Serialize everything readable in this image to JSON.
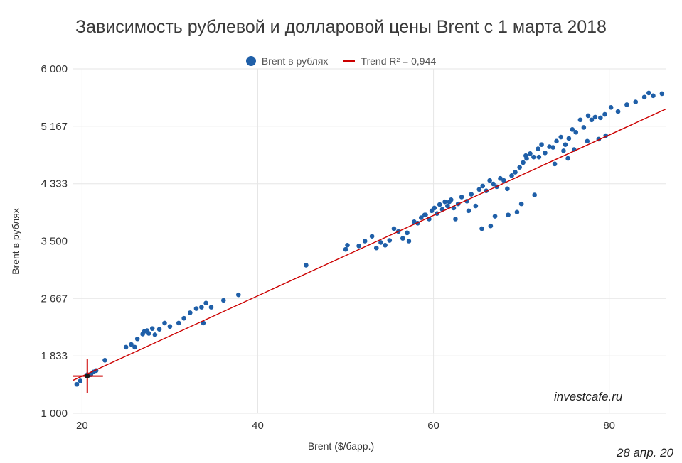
{
  "chart_data": {
    "type": "scatter",
    "title": "Зависимость рублевой и долларовой цены Brent с 1 марта 2018",
    "xlabel": "Brent ($/барр.)",
    "ylabel": "Brent в рублях",
    "xlim": [
      19,
      86.5
    ],
    "ylim": [
      1000,
      6000
    ],
    "x_ticks": [
      "20",
      "40",
      "60",
      "80"
    ],
    "x_tick_values": [
      20,
      40,
      60,
      80
    ],
    "y_ticks": [
      "6 000",
      "5 167",
      "4 333",
      "3 500",
      "2 667",
      "1 833",
      "1 000"
    ],
    "y_tick_values": [
      6000,
      5167,
      4333,
      3500,
      2667,
      1833,
      1000
    ],
    "grid": true,
    "legend": {
      "placement": "top",
      "entries": [
        "Brent в рублях",
        "Trend R² = 0,944"
      ]
    },
    "series": [
      {
        "name": "Brent в рублях",
        "color": "#1f5fa8",
        "points": [
          [
            19.4,
            1420
          ],
          [
            19.8,
            1470
          ],
          [
            20.6,
            1560
          ],
          [
            21.0,
            1560
          ],
          [
            21.3,
            1600
          ],
          [
            21.6,
            1620
          ],
          [
            22.6,
            1770
          ],
          [
            25.0,
            1960
          ],
          [
            25.6,
            2000
          ],
          [
            26.0,
            1960
          ],
          [
            26.3,
            2080
          ],
          [
            26.9,
            2150
          ],
          [
            27.1,
            2190
          ],
          [
            27.4,
            2200
          ],
          [
            27.6,
            2160
          ],
          [
            28.0,
            2230
          ],
          [
            28.3,
            2140
          ],
          [
            28.8,
            2220
          ],
          [
            29.4,
            2310
          ],
          [
            30.0,
            2260
          ],
          [
            31.0,
            2310
          ],
          [
            31.6,
            2380
          ],
          [
            32.3,
            2460
          ],
          [
            33.0,
            2520
          ],
          [
            33.6,
            2540
          ],
          [
            33.8,
            2310
          ],
          [
            34.1,
            2600
          ],
          [
            34.7,
            2540
          ],
          [
            36.1,
            2640
          ],
          [
            37.8,
            2720
          ],
          [
            45.5,
            3150
          ],
          [
            50.0,
            3380
          ],
          [
            50.2,
            3440
          ],
          [
            51.5,
            3430
          ],
          [
            52.2,
            3500
          ],
          [
            53.0,
            3570
          ],
          [
            53.5,
            3400
          ],
          [
            54.0,
            3480
          ],
          [
            54.5,
            3440
          ],
          [
            55.0,
            3510
          ],
          [
            55.5,
            3680
          ],
          [
            56.0,
            3640
          ],
          [
            56.5,
            3540
          ],
          [
            57.0,
            3620
          ],
          [
            57.2,
            3500
          ],
          [
            57.8,
            3780
          ],
          [
            58.2,
            3760
          ],
          [
            58.6,
            3840
          ],
          [
            59.1,
            3880
          ],
          [
            59.5,
            3820
          ],
          [
            59.8,
            3940
          ],
          [
            60.1,
            3980
          ],
          [
            60.4,
            3900
          ],
          [
            60.7,
            4030
          ],
          [
            61.0,
            3960
          ],
          [
            61.3,
            4070
          ],
          [
            61.6,
            4010
          ],
          [
            62.0,
            4100
          ],
          [
            62.3,
            3980
          ],
          [
            62.8,
            4040
          ],
          [
            63.2,
            4140
          ],
          [
            63.8,
            4080
          ],
          [
            64.3,
            4180
          ],
          [
            64.8,
            4010
          ],
          [
            65.2,
            4250
          ],
          [
            65.6,
            4300
          ],
          [
            66.0,
            4230
          ],
          [
            66.4,
            4380
          ],
          [
            66.8,
            4330
          ],
          [
            67.2,
            4290
          ],
          [
            67.6,
            4410
          ],
          [
            68.0,
            4380
          ],
          [
            68.4,
            4260
          ],
          [
            68.9,
            4450
          ],
          [
            69.3,
            4500
          ],
          [
            69.8,
            4570
          ],
          [
            70.2,
            4640
          ],
          [
            70.6,
            4700
          ],
          [
            71.0,
            4770
          ],
          [
            71.4,
            4720
          ],
          [
            71.9,
            4840
          ],
          [
            72.3,
            4900
          ],
          [
            72.7,
            4780
          ],
          [
            73.2,
            4870
          ],
          [
            73.6,
            4860
          ],
          [
            74.0,
            4950
          ],
          [
            74.5,
            5010
          ],
          [
            75.0,
            4900
          ],
          [
            75.4,
            4990
          ],
          [
            75.8,
            5120
          ],
          [
            76.2,
            5080
          ],
          [
            76.7,
            5260
          ],
          [
            77.1,
            5150
          ],
          [
            77.6,
            5320
          ],
          [
            78.0,
            5260
          ],
          [
            78.4,
            5300
          ],
          [
            79.0,
            5290
          ],
          [
            79.5,
            5340
          ],
          [
            80.2,
            5440
          ],
          [
            81.0,
            5380
          ],
          [
            82.0,
            5480
          ],
          [
            83.0,
            5520
          ],
          [
            84.0,
            5590
          ],
          [
            84.5,
            5650
          ],
          [
            85.0,
            5610
          ],
          [
            86.0,
            5640
          ],
          [
            59.0,
            3880
          ],
          [
            61.8,
            4070
          ],
          [
            64.0,
            3940
          ],
          [
            67.0,
            3860
          ],
          [
            68.5,
            3880
          ],
          [
            69.5,
            3920
          ],
          [
            70.0,
            4040
          ],
          [
            71.5,
            4170
          ],
          [
            62.5,
            3820
          ],
          [
            65.5,
            3680
          ],
          [
            66.5,
            3720
          ],
          [
            70.5,
            4740
          ],
          [
            72.0,
            4720
          ],
          [
            74.8,
            4810
          ],
          [
            76.0,
            4830
          ],
          [
            77.5,
            4950
          ],
          [
            78.8,
            4980
          ],
          [
            79.6,
            5030
          ],
          [
            73.8,
            4620
          ],
          [
            75.3,
            4700
          ]
        ]
      }
    ],
    "trend": {
      "name": "Trend R² = 0,944",
      "color": "#cc0000",
      "x": [
        19,
        86.5
      ],
      "y": [
        1480,
        5420
      ]
    },
    "annotation": {
      "type": "marker",
      "x": 20.6,
      "y": 1540
    }
  },
  "watermark": "investcafe.ru",
  "date_label": "28 апр. 20"
}
